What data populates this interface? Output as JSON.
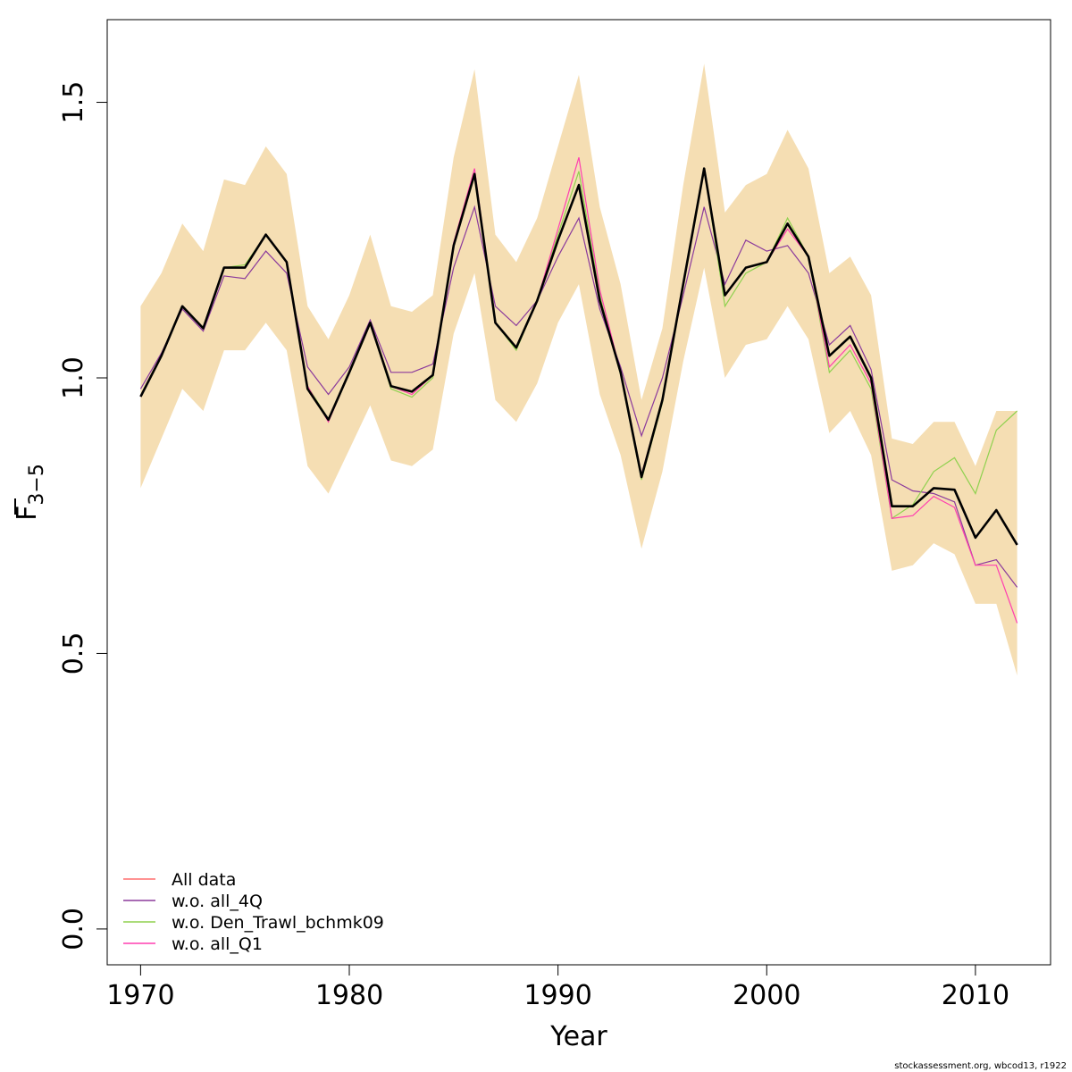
{
  "chart_data": {
    "type": "line",
    "xlabel": "Year",
    "ylabel_main": "F",
    "ylabel_sub": "3−5",
    "xlim": [
      1968.4,
      2013.6
    ],
    "ylim": [
      -0.065,
      1.65
    ],
    "x_ticks": [
      1970,
      1980,
      1990,
      2000,
      2010
    ],
    "y_ticks": [
      0.0,
      0.5,
      1.0,
      1.5
    ],
    "x_tick_labels": [
      "1970",
      "1980",
      "1990",
      "2000",
      "2010"
    ],
    "y_tick_labels": [
      "0.0",
      "0.5",
      "1.0",
      "1.5"
    ],
    "x": [
      1970,
      1971,
      1972,
      1973,
      1974,
      1975,
      1976,
      1977,
      1978,
      1979,
      1980,
      1981,
      1982,
      1983,
      1984,
      1985,
      1986,
      1987,
      1988,
      1989,
      1990,
      1991,
      1992,
      1993,
      1994,
      1995,
      1996,
      1997,
      1998,
      1999,
      2000,
      2001,
      2002,
      2003,
      2004,
      2005,
      2006,
      2007,
      2008,
      2009,
      2010,
      2011,
      2012
    ],
    "band": {
      "color": "#f5deb3",
      "upper": [
        1.13,
        1.19,
        1.28,
        1.23,
        1.36,
        1.35,
        1.42,
        1.37,
        1.13,
        1.07,
        1.15,
        1.26,
        1.13,
        1.12,
        1.15,
        1.4,
        1.56,
        1.26,
        1.21,
        1.29,
        1.42,
        1.55,
        1.31,
        1.17,
        0.96,
        1.09,
        1.35,
        1.57,
        1.3,
        1.35,
        1.37,
        1.45,
        1.38,
        1.19,
        1.22,
        1.15,
        0.89,
        0.88,
        0.92,
        0.92,
        0.84,
        0.94,
        0.94
      ],
      "lower": [
        0.8,
        0.89,
        0.98,
        0.94,
        1.05,
        1.05,
        1.1,
        1.05,
        0.84,
        0.79,
        0.87,
        0.95,
        0.85,
        0.84,
        0.87,
        1.08,
        1.19,
        0.96,
        0.92,
        0.99,
        1.1,
        1.17,
        0.97,
        0.86,
        0.69,
        0.83,
        1.03,
        1.2,
        1.0,
        1.06,
        1.07,
        1.13,
        1.07,
        0.9,
        0.94,
        0.86,
        0.65,
        0.66,
        0.7,
        0.68,
        0.59,
        0.59,
        0.46
      ]
    },
    "main_series": {
      "color": "#000000",
      "values": [
        0.966,
        1.04,
        1.13,
        1.09,
        1.2,
        1.2,
        1.26,
        1.21,
        0.98,
        0.924,
        1.01,
        1.1,
        0.985,
        0.975,
        1.005,
        1.24,
        1.37,
        1.1,
        1.055,
        1.14,
        1.25,
        1.35,
        1.14,
        1.01,
        0.82,
        0.96,
        1.17,
        1.38,
        1.15,
        1.2,
        1.21,
        1.28,
        1.22,
        1.04,
        1.075,
        1.0,
        0.767,
        0.767,
        0.8,
        0.797,
        0.71,
        0.76,
        0.697
      ]
    },
    "series": [
      {
        "name": "All data",
        "color": "#ff6e6e",
        "values": [
          0.966,
          1.04,
          1.13,
          1.09,
          1.2,
          1.2,
          1.26,
          1.21,
          0.98,
          0.924,
          1.01,
          1.1,
          0.985,
          0.975,
          1.005,
          1.24,
          1.37,
          1.1,
          1.055,
          1.14,
          1.25,
          1.35,
          1.14,
          1.01,
          0.82,
          0.96,
          1.17,
          1.38,
          1.15,
          1.2,
          1.21,
          1.28,
          1.22,
          1.04,
          1.075,
          1.0,
          0.767,
          0.767,
          0.8,
          0.797,
          0.71,
          0.76,
          0.697
        ]
      },
      {
        "name": "w.o. all_4Q",
        "color": "#8b3a9c",
        "values": [
          0.98,
          1.045,
          1.125,
          1.085,
          1.185,
          1.18,
          1.23,
          1.19,
          1.02,
          0.97,
          1.02,
          1.105,
          1.01,
          1.01,
          1.025,
          1.2,
          1.31,
          1.13,
          1.095,
          1.14,
          1.22,
          1.29,
          1.125,
          1.02,
          0.895,
          1.0,
          1.15,
          1.31,
          1.17,
          1.25,
          1.23,
          1.24,
          1.19,
          1.06,
          1.095,
          1.015,
          0.815,
          0.795,
          0.79,
          0.775,
          0.66,
          0.67,
          0.62
        ]
      },
      {
        "name": "w.o. Den_Trawl_bchmk09",
        "color": "#8fd14f",
        "values": [
          0.966,
          1.04,
          1.13,
          1.09,
          1.2,
          1.205,
          1.26,
          1.21,
          0.985,
          0.925,
          1.01,
          1.1,
          0.98,
          0.965,
          1.0,
          1.24,
          1.37,
          1.1,
          1.05,
          1.14,
          1.26,
          1.375,
          1.15,
          1.005,
          0.815,
          0.955,
          1.17,
          1.38,
          1.13,
          1.19,
          1.21,
          1.29,
          1.22,
          1.01,
          1.05,
          0.98,
          0.745,
          0.77,
          0.83,
          0.855,
          0.79,
          0.905,
          0.94
        ]
      },
      {
        "name": "w.o. all_Q1",
        "color": "#ff3fb0",
        "values": [
          0.966,
          1.04,
          1.13,
          1.09,
          1.2,
          1.2,
          1.26,
          1.21,
          0.985,
          0.92,
          1.01,
          1.1,
          0.985,
          0.97,
          1.005,
          1.245,
          1.38,
          1.1,
          1.055,
          1.14,
          1.27,
          1.4,
          1.16,
          1.01,
          0.825,
          0.96,
          1.17,
          1.38,
          1.15,
          1.2,
          1.21,
          1.27,
          1.22,
          1.02,
          1.06,
          0.99,
          0.745,
          0.75,
          0.785,
          0.765,
          0.66,
          0.66,
          0.555
        ]
      }
    ],
    "legend_position": "bottom-left"
  },
  "credit": "stockassessment.org, wbcod13, r1922"
}
